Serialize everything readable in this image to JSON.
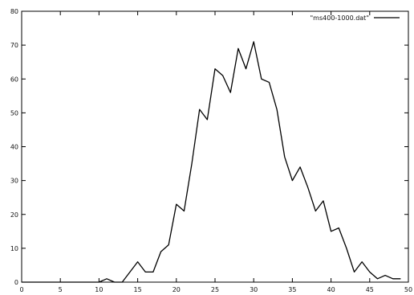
{
  "chart_data": {
    "type": "line",
    "title": "",
    "xlabel": "",
    "ylabel": "",
    "xlim": [
      0,
      50
    ],
    "ylim": [
      0,
      80
    ],
    "xticks": [
      "0",
      "5",
      "10",
      "15",
      "20",
      "25",
      "30",
      "35",
      "40",
      "45",
      "50"
    ],
    "yticks": [
      "0",
      "10",
      "20",
      "30",
      "40",
      "50",
      "60",
      "70",
      "80"
    ],
    "grid": false,
    "legend_position": "top-right",
    "series": [
      {
        "name": "\"ms400-1000.dat\"",
        "color": "#000000",
        "x": [
          0,
          1,
          2,
          3,
          4,
          5,
          6,
          7,
          8,
          9,
          10,
          11,
          12,
          13,
          14,
          15,
          16,
          17,
          18,
          19,
          20,
          21,
          22,
          23,
          24,
          25,
          26,
          27,
          28,
          29,
          30,
          31,
          32,
          33,
          34,
          35,
          36,
          37,
          38,
          39,
          40,
          41,
          42,
          43,
          44,
          45,
          46,
          47,
          48,
          49
        ],
        "y": [
          0,
          0,
          0,
          0,
          0,
          0,
          0,
          0,
          0,
          0,
          0,
          1,
          0,
          0,
          3,
          6,
          3,
          3,
          9,
          11,
          23,
          21,
          35,
          51,
          48,
          63,
          61,
          56,
          69,
          63,
          71,
          60,
          59,
          51,
          37,
          30,
          34,
          28,
          21,
          24,
          15,
          16,
          10,
          3,
          6,
          3,
          1,
          2,
          1,
          1
        ]
      }
    ]
  }
}
